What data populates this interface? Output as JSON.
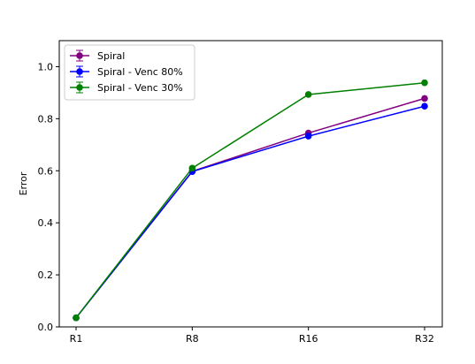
{
  "chart_data": {
    "type": "line",
    "title": "",
    "xlabel": "",
    "ylabel": "Error",
    "categories": [
      "R1",
      "R8",
      "R16",
      "R32"
    ],
    "ylim": [
      0,
      1.1
    ],
    "yticks": [
      0.0,
      0.2,
      0.4,
      0.6,
      0.8,
      1.0
    ],
    "ytick_labels": [
      "0.0",
      "0.2",
      "0.4",
      "0.6",
      "0.8",
      "1.0"
    ],
    "grid": false,
    "legend_position": "top-left",
    "error_bars": true,
    "series": [
      {
        "name": "Spiral",
        "values": [
          0.035,
          0.598,
          0.745,
          0.878
        ],
        "color": "#800080"
      },
      {
        "name": "Spiral - Venc 80%",
        "values": [
          0.035,
          0.597,
          0.733,
          0.848
        ],
        "color": "#0000ff"
      },
      {
        "name": "Spiral - Venc 30%",
        "values": [
          0.035,
          0.61,
          0.893,
          0.938
        ],
        "color": "#008000"
      }
    ]
  }
}
